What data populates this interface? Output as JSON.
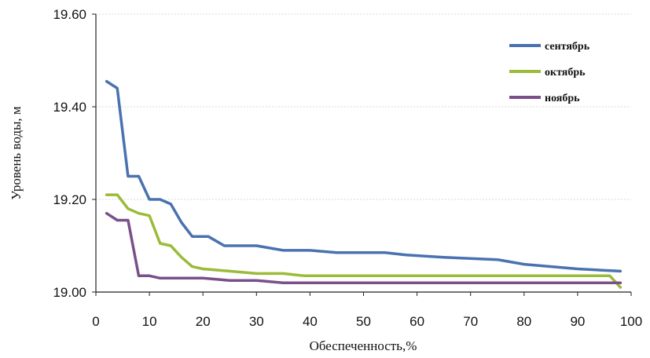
{
  "chart_data": {
    "type": "line",
    "title": "",
    "xlabel": "Обеспеченность,%",
    "ylabel": "Уровень воды, м",
    "xlim": [
      0,
      100
    ],
    "ylim": [
      19.0,
      19.6
    ],
    "x_ticks": [
      0,
      10,
      20,
      30,
      40,
      50,
      60,
      70,
      80,
      90,
      100
    ],
    "y_ticks": [
      19.0,
      19.2,
      19.4,
      19.6
    ],
    "y_tick_labels": [
      "19.00",
      "19.20",
      "19.40",
      "19.60"
    ],
    "grid": "horizontal dashed",
    "legend_position": "top-right",
    "series": [
      {
        "name": "сентябрь",
        "color": "#4a72b0",
        "points": [
          [
            2,
            19.455
          ],
          [
            4,
            19.44
          ],
          [
            6,
            19.25
          ],
          [
            8,
            19.25
          ],
          [
            10,
            19.2
          ],
          [
            12,
            19.2
          ],
          [
            14,
            19.19
          ],
          [
            16,
            19.15
          ],
          [
            18,
            19.12
          ],
          [
            21,
            19.12
          ],
          [
            24,
            19.1
          ],
          [
            30,
            19.1
          ],
          [
            35,
            19.09
          ],
          [
            40,
            19.09
          ],
          [
            45,
            19.085
          ],
          [
            50,
            19.085
          ],
          [
            54,
            19.085
          ],
          [
            58,
            19.08
          ],
          [
            65,
            19.075
          ],
          [
            75,
            19.07
          ],
          [
            80,
            19.06
          ],
          [
            90,
            19.05
          ],
          [
            98,
            19.045
          ]
        ]
      },
      {
        "name": "октябрь",
        "color": "#9bbb3a",
        "points": [
          [
            2,
            19.21
          ],
          [
            4,
            19.21
          ],
          [
            6,
            19.18
          ],
          [
            8,
            19.17
          ],
          [
            10,
            19.165
          ],
          [
            12,
            19.105
          ],
          [
            14,
            19.1
          ],
          [
            16,
            19.075
          ],
          [
            18,
            19.055
          ],
          [
            20,
            19.05
          ],
          [
            25,
            19.045
          ],
          [
            30,
            19.04
          ],
          [
            35,
            19.04
          ],
          [
            39,
            19.035
          ],
          [
            50,
            19.035
          ],
          [
            60,
            19.035
          ],
          [
            70,
            19.035
          ],
          [
            80,
            19.035
          ],
          [
            90,
            19.035
          ],
          [
            96,
            19.035
          ],
          [
            98,
            19.01
          ]
        ]
      },
      {
        "name": "ноябрь",
        "color": "#7a4f8a",
        "points": [
          [
            2,
            19.17
          ],
          [
            4,
            19.155
          ],
          [
            6,
            19.155
          ],
          [
            8,
            19.035
          ],
          [
            10,
            19.035
          ],
          [
            12,
            19.03
          ],
          [
            14,
            19.03
          ],
          [
            20,
            19.03
          ],
          [
            25,
            19.025
          ],
          [
            30,
            19.025
          ],
          [
            35,
            19.02
          ],
          [
            40,
            19.02
          ],
          [
            50,
            19.02
          ],
          [
            60,
            19.02
          ],
          [
            70,
            19.02
          ],
          [
            80,
            19.02
          ],
          [
            90,
            19.02
          ],
          [
            98,
            19.02
          ]
        ]
      }
    ]
  }
}
